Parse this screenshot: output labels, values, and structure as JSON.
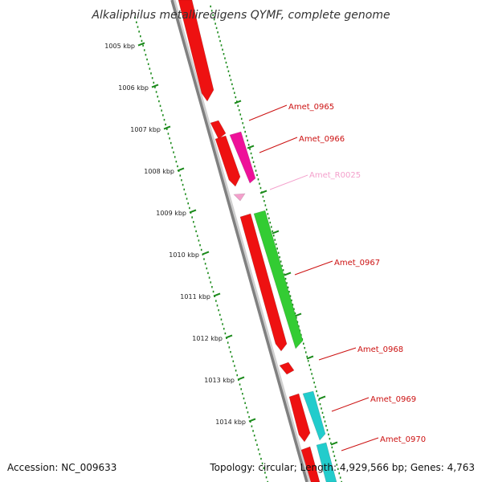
{
  "title": "Alkaliphilus metalliredigens QYMF, complete genome",
  "accession_label": "Accession: NC_009633",
  "summary_label": "Topology: circular; Length: 4,929,566 bp; Genes: 4,763",
  "colors": {
    "backbone": "#808080",
    "tick": "#1a8a1a",
    "cds_red": "#ee1111",
    "cds_magenta": "#ee1199",
    "rna_pink": "#f4a0cc",
    "cds_green": "#33cc33",
    "cds_cyan": "#22cccc"
  },
  "ticks": [
    {
      "label": "1005 kbp"
    },
    {
      "label": "1006 kbp"
    },
    {
      "label": "1007 kbp"
    },
    {
      "label": "1008 kbp"
    },
    {
      "label": "1009 kbp"
    },
    {
      "label": "1010 kbp"
    },
    {
      "label": "1011 kbp"
    },
    {
      "label": "1012 kbp"
    },
    {
      "label": "1013 kbp"
    },
    {
      "label": "1014 kbp"
    }
  ],
  "gene_labels": [
    {
      "name": "Amet_0965",
      "color": "#cc1111"
    },
    {
      "name": "Amet_0966",
      "color": "#cc1111"
    },
    {
      "name": "Amet_R0025",
      "color": "#f4a0cc"
    },
    {
      "name": "Amet_0967",
      "color": "#cc1111"
    },
    {
      "name": "Amet_0968",
      "color": "#cc1111"
    },
    {
      "name": "Amet_0969",
      "color": "#cc1111"
    },
    {
      "name": "Amet_0970",
      "color": "#cc1111"
    }
  ]
}
